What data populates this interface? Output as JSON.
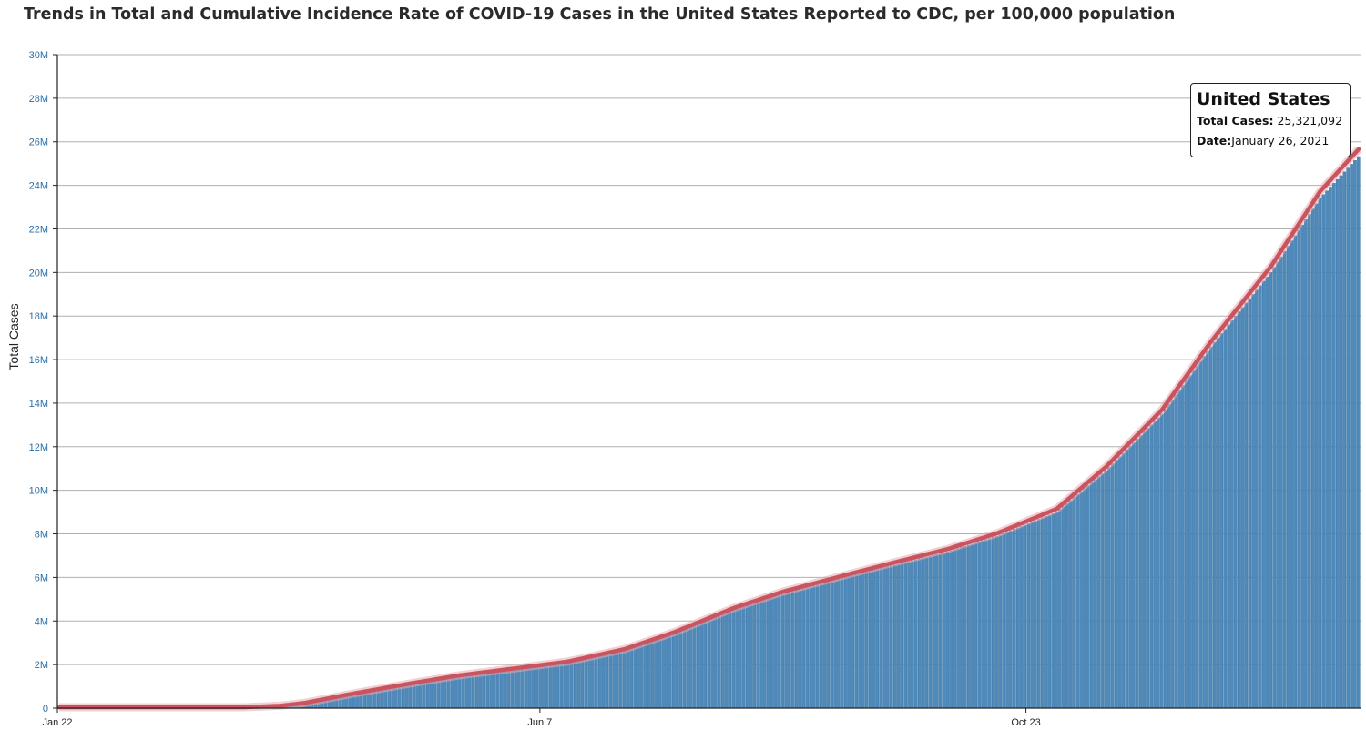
{
  "title": "Trends in Total and Cumulative Incidence Rate of COVID-19 Cases in the United States Reported to CDC, per 100,000 population",
  "tooltip": {
    "heading": "United States",
    "total_cases_label": "Total Cases:",
    "total_cases_value": "25,321,092",
    "date_label": "Date:",
    "date_value": "January 26, 2021"
  },
  "colors": {
    "bars": "#4f8abb",
    "bar_edge": "#2f6b9c",
    "line": "#c9545f",
    "line_glow": "#e9a9ae",
    "grid": "#b0b0b0",
    "axis": "#222222"
  },
  "chart_data": {
    "type": "bar",
    "overlay": "line",
    "title": "Trends in Total and Cumulative Incidence Rate of COVID-19 Cases in the United States Reported to CDC, per 100,000 population",
    "xlabel": "",
    "ylabel": "Total Cases",
    "x_start": "2020-01-22",
    "x_end": "2021-01-26",
    "x_ticks": [
      {
        "date": "2020-01-22",
        "label": "Jan 22"
      },
      {
        "date": "2020-06-07",
        "label": "Jun 7"
      },
      {
        "date": "2020-10-23",
        "label": "Oct 23"
      }
    ],
    "ylim": [
      0,
      30000000
    ],
    "y_ticks": [
      {
        "value": 0,
        "label": "0"
      },
      {
        "value": 2000000,
        "label": "2M"
      },
      {
        "value": 4000000,
        "label": "4M"
      },
      {
        "value": 6000000,
        "label": "6M"
      },
      {
        "value": 8000000,
        "label": "8M"
      },
      {
        "value": 10000000,
        "label": "10M"
      },
      {
        "value": 12000000,
        "label": "12M"
      },
      {
        "value": 14000000,
        "label": "14M"
      },
      {
        "value": 16000000,
        "label": "16M"
      },
      {
        "value": 18000000,
        "label": "18M"
      },
      {
        "value": 20000000,
        "label": "20M"
      },
      {
        "value": 22000000,
        "label": "22M"
      },
      {
        "value": 24000000,
        "label": "24M"
      },
      {
        "value": 26000000,
        "label": "26M"
      },
      {
        "value": 28000000,
        "label": "28M"
      },
      {
        "value": 30000000,
        "label": "30M"
      }
    ],
    "grid": true,
    "series": [
      {
        "values_by_date": [
          [
            "2020-01-22",
            0
          ],
          [
            "2020-03-01",
            0
          ],
          [
            "2020-03-15",
            3000
          ],
          [
            "2020-03-25",
            70000
          ],
          [
            "2020-04-01",
            200000
          ],
          [
            "2020-04-15",
            630000
          ],
          [
            "2020-05-01",
            1080000
          ],
          [
            "2020-05-15",
            1450000
          ],
          [
            "2020-06-01",
            1790000
          ],
          [
            "2020-06-15",
            2080000
          ],
          [
            "2020-07-01",
            2640000
          ],
          [
            "2020-07-15",
            3400000
          ],
          [
            "2020-08-01",
            4500000
          ],
          [
            "2020-08-15",
            5240000
          ],
          [
            "2020-09-01",
            5960000
          ],
          [
            "2020-09-15",
            6540000
          ],
          [
            "2020-10-01",
            7180000
          ],
          [
            "2020-10-15",
            7890000
          ],
          [
            "2020-11-01",
            9000000
          ],
          [
            "2020-11-15",
            10900000
          ],
          [
            "2020-12-01",
            13500000
          ],
          [
            "2020-12-15",
            16600000
          ],
          [
            "2021-01-01",
            20000000
          ],
          [
            "2021-01-15",
            23400000
          ],
          [
            "2021-01-26",
            25321092
          ]
        ]
      }
    ]
  }
}
